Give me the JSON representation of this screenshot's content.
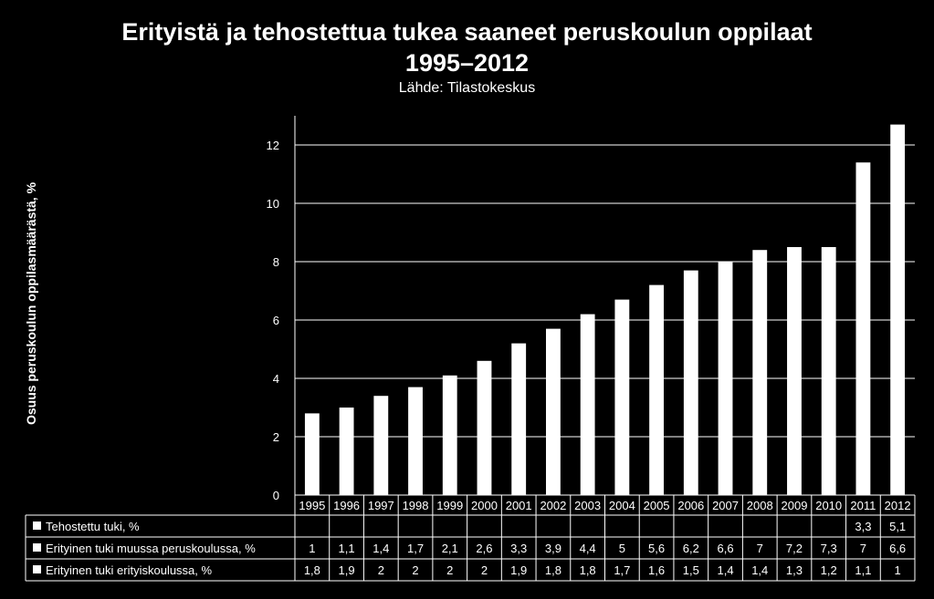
{
  "chart_data": {
    "type": "bar",
    "title_line1": "Erityistä ja tehostettua tukea saaneet peruskoulun oppilaat",
    "title_line2": "1995–2012",
    "subtitle": "Lähde: Tilastokeskus",
    "ylabel": "Osuus peruskoulun oppilasmäärästä, %",
    "xlabel": "",
    "ylim": [
      0,
      13
    ],
    "yticks": [
      0,
      2,
      4,
      6,
      8,
      10,
      12
    ],
    "grid": true,
    "categories": [
      "1995",
      "1996",
      "1997",
      "1998",
      "1999",
      "2000",
      "2001",
      "2002",
      "2003",
      "2004",
      "2005",
      "2006",
      "2007",
      "2008",
      "2009",
      "2010",
      "2011",
      "2012"
    ],
    "stacked": true,
    "colors": {
      "bar": "#ffffff",
      "background": "#000000",
      "grid": "#ffffff"
    },
    "series": [
      {
        "name": "Tehostettu tuki, %",
        "values": [
          null,
          null,
          null,
          null,
          null,
          null,
          null,
          null,
          null,
          null,
          null,
          null,
          null,
          null,
          null,
          null,
          3.3,
          5.1
        ],
        "labels": [
          "",
          "",
          "",
          "",
          "",
          "",
          "",
          "",
          "",
          "",
          "",
          "",
          "",
          "",
          "",
          "",
          "3,3",
          "5,1"
        ]
      },
      {
        "name": "Erityinen tuki muussa peruskoulussa, %",
        "values": [
          1,
          1.1,
          1.4,
          1.7,
          2.1,
          2.6,
          3.3,
          3.9,
          4.4,
          5,
          5.6,
          6.2,
          6.6,
          7,
          7.2,
          7.3,
          7,
          6.6
        ],
        "labels": [
          "1",
          "1,1",
          "1,4",
          "1,7",
          "2,1",
          "2,6",
          "3,3",
          "3,9",
          "4,4",
          "5",
          "5,6",
          "6,2",
          "6,6",
          "7",
          "7,2",
          "7,3",
          "7",
          "6,6"
        ]
      },
      {
        "name": "Erityinen tuki erityiskoulussa, %",
        "values": [
          1.8,
          1.9,
          2,
          2,
          2,
          2,
          1.9,
          1.8,
          1.8,
          1.7,
          1.6,
          1.5,
          1.4,
          1.4,
          1.3,
          1.2,
          1.1,
          1
        ],
        "labels": [
          "1,8",
          "1,9",
          "2",
          "2",
          "2",
          "2",
          "1,9",
          "1,8",
          "1,8",
          "1,7",
          "1,6",
          "1,5",
          "1,4",
          "1,4",
          "1,3",
          "1,2",
          "1,1",
          "1"
        ]
      }
    ]
  }
}
